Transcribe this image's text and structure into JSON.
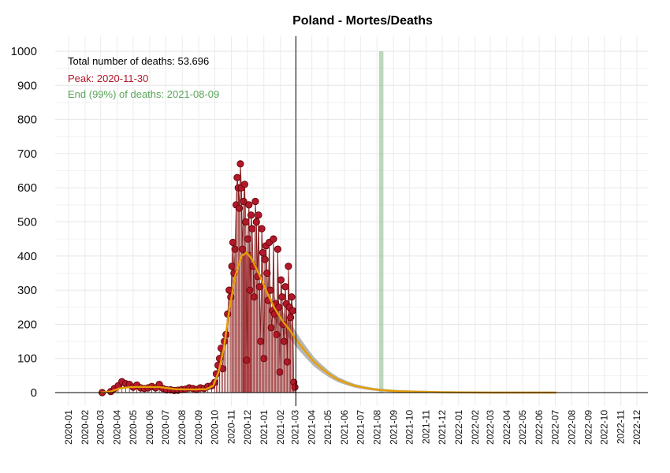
{
  "chart_data": {
    "type": "line",
    "title": "Poland - Mortes/Deaths",
    "xlabel": "",
    "ylabel": "",
    "ylim": [
      0,
      1000
    ],
    "yticks": [
      0,
      100,
      200,
      300,
      400,
      500,
      600,
      700,
      800,
      900,
      1000
    ],
    "xticks": [
      "2020-01",
      "2020-02",
      "2020-03",
      "2020-04",
      "2020-05",
      "2020-06",
      "2020-07",
      "2020-08",
      "2020-09",
      "2020-10",
      "2020-11",
      "2020-12",
      "2021-01",
      "2021-02",
      "2021-03",
      "2021-04",
      "2021-05",
      "2021-06",
      "2021-07",
      "2021-08",
      "2021-09",
      "2021-10",
      "2021-11",
      "2021-12",
      "2022-01",
      "2022-02",
      "2022-03",
      "2022-04",
      "2022-05",
      "2022-06",
      "2022-07",
      "2022-08",
      "2022-09",
      "2022-10",
      "2022-11",
      "2022-12"
    ],
    "grid": true,
    "annotations": {
      "total": "Total number of deaths: 53.696",
      "peak": "Peak: 2020-11-30",
      "end": "End (99%) of deaths: 2021-08-09"
    },
    "colors": {
      "observed": "#b2182b",
      "fit": "#e69f00",
      "band": "#a9a9a9",
      "peak_band": "#d6606d",
      "end_band": "#8fbc8f",
      "today_line": "#000000",
      "total_text": "#000000",
      "peak_text": "#b2182b",
      "end_text": "#5aa55a"
    },
    "today": "2021-03-02",
    "peak_band": [
      "2020-11-23",
      "2020-12-08"
    ],
    "end_band": [
      "2021-08-05",
      "2021-08-13"
    ],
    "observed": [
      [
        "2020-03-04",
        0
      ],
      [
        "2020-03-20",
        3
      ],
      [
        "2020-03-27",
        12
      ],
      [
        "2020-04-03",
        20
      ],
      [
        "2020-04-10",
        32
      ],
      [
        "2020-04-17",
        26
      ],
      [
        "2020-04-24",
        24
      ],
      [
        "2020-05-01",
        16
      ],
      [
        "2020-05-08",
        22
      ],
      [
        "2020-05-15",
        14
      ],
      [
        "2020-05-22",
        12
      ],
      [
        "2020-05-29",
        14
      ],
      [
        "2020-06-05",
        18
      ],
      [
        "2020-06-12",
        14
      ],
      [
        "2020-06-19",
        24
      ],
      [
        "2020-06-26",
        12
      ],
      [
        "2020-07-03",
        8
      ],
      [
        "2020-07-10",
        8
      ],
      [
        "2020-07-17",
        6
      ],
      [
        "2020-07-24",
        7
      ],
      [
        "2020-07-31",
        9
      ],
      [
        "2020-08-07",
        10
      ],
      [
        "2020-08-14",
        14
      ],
      [
        "2020-08-21",
        12
      ],
      [
        "2020-08-28",
        9
      ],
      [
        "2020-09-04",
        14
      ],
      [
        "2020-09-11",
        12
      ],
      [
        "2020-09-18",
        18
      ],
      [
        "2020-09-25",
        20
      ],
      [
        "2020-10-01",
        30
      ],
      [
        "2020-10-04",
        55
      ],
      [
        "2020-10-07",
        80
      ],
      [
        "2020-10-10",
        100
      ],
      [
        "2020-10-13",
        130
      ],
      [
        "2020-10-16",
        70
      ],
      [
        "2020-10-19",
        150
      ],
      [
        "2020-10-22",
        170
      ],
      [
        "2020-10-25",
        230
      ],
      [
        "2020-10-28",
        300
      ],
      [
        "2020-10-31",
        280
      ],
      [
        "2020-11-02",
        370
      ],
      [
        "2020-11-04",
        440
      ],
      [
        "2020-11-06",
        350
      ],
      [
        "2020-11-08",
        420
      ],
      [
        "2020-11-10",
        550
      ],
      [
        "2020-11-12",
        630
      ],
      [
        "2020-11-14",
        600
      ],
      [
        "2020-11-16",
        540
      ],
      [
        "2020-11-18",
        670
      ],
      [
        "2020-11-20",
        600
      ],
      [
        "2020-11-22",
        420
      ],
      [
        "2020-11-24",
        560
      ],
      [
        "2020-11-26",
        610
      ],
      [
        "2020-11-28",
        500
      ],
      [
        "2020-11-30",
        95
      ],
      [
        "2020-12-02",
        450
      ],
      [
        "2020-12-04",
        550
      ],
      [
        "2020-12-06",
        300
      ],
      [
        "2020-12-08",
        520
      ],
      [
        "2020-12-10",
        480
      ],
      [
        "2020-12-12",
        370
      ],
      [
        "2020-12-14",
        280
      ],
      [
        "2020-12-16",
        560
      ],
      [
        "2020-12-18",
        500
      ],
      [
        "2020-12-20",
        340
      ],
      [
        "2020-12-22",
        520
      ],
      [
        "2020-12-24",
        310
      ],
      [
        "2020-12-26",
        150
      ],
      [
        "2020-12-28",
        480
      ],
      [
        "2020-12-30",
        410
      ],
      [
        "2021-01-01",
        100
      ],
      [
        "2021-01-03",
        390
      ],
      [
        "2021-01-05",
        430
      ],
      [
        "2021-01-07",
        350
      ],
      [
        "2021-01-09",
        270
      ],
      [
        "2021-01-11",
        440
      ],
      [
        "2021-01-13",
        300
      ],
      [
        "2021-01-15",
        190
      ],
      [
        "2021-01-17",
        240
      ],
      [
        "2021-01-19",
        450
      ],
      [
        "2021-01-21",
        230
      ],
      [
        "2021-01-23",
        260
      ],
      [
        "2021-01-25",
        170
      ],
      [
        "2021-01-27",
        420
      ],
      [
        "2021-01-29",
        250
      ],
      [
        "2021-01-31",
        60
      ],
      [
        "2021-02-02",
        330
      ],
      [
        "2021-02-04",
        280
      ],
      [
        "2021-02-06",
        200
      ],
      [
        "2021-02-08",
        150
      ],
      [
        "2021-02-10",
        310
      ],
      [
        "2021-02-12",
        260
      ],
      [
        "2021-02-14",
        90
      ],
      [
        "2021-02-16",
        370
      ],
      [
        "2021-02-18",
        250
      ],
      [
        "2021-02-20",
        220
      ],
      [
        "2021-02-22",
        280
      ],
      [
        "2021-02-24",
        240
      ],
      [
        "2021-02-26",
        30
      ],
      [
        "2021-02-28",
        16
      ]
    ],
    "fit": [
      [
        "2020-03-01",
        0
      ],
      [
        "2020-03-20",
        3
      ],
      [
        "2020-04-05",
        12
      ],
      [
        "2020-04-25",
        16
      ],
      [
        "2020-05-20",
        17
      ],
      [
        "2020-06-20",
        16
      ],
      [
        "2020-07-20",
        10
      ],
      [
        "2020-08-20",
        9
      ],
      [
        "2020-09-15",
        10
      ],
      [
        "2020-09-28",
        20
      ],
      [
        "2020-10-08",
        60
      ],
      [
        "2020-10-18",
        130
      ],
      [
        "2020-10-28",
        240
      ],
      [
        "2020-11-08",
        340
      ],
      [
        "2020-11-20",
        400
      ],
      [
        "2020-11-30",
        410
      ],
      [
        "2020-12-10",
        390
      ],
      [
        "2020-12-22",
        350
      ],
      [
        "2021-01-05",
        300
      ],
      [
        "2021-01-20",
        250
      ],
      [
        "2021-02-05",
        210
      ],
      [
        "2021-02-20",
        180
      ],
      [
        "2021-03-05",
        150
      ],
      [
        "2021-03-20",
        120
      ],
      [
        "2021-04-05",
        90
      ],
      [
        "2021-04-20",
        70
      ],
      [
        "2021-05-05",
        52
      ],
      [
        "2021-05-20",
        38
      ],
      [
        "2021-06-05",
        28
      ],
      [
        "2021-06-20",
        20
      ],
      [
        "2021-07-05",
        15
      ],
      [
        "2021-07-20",
        11
      ],
      [
        "2021-08-05",
        8
      ],
      [
        "2021-08-20",
        6
      ],
      [
        "2021-09-10",
        4
      ],
      [
        "2021-10-01",
        3
      ],
      [
        "2021-11-01",
        2
      ],
      [
        "2021-12-01",
        1
      ],
      [
        "2022-03-01",
        0
      ],
      [
        "2022-07-03",
        0
      ]
    ]
  }
}
